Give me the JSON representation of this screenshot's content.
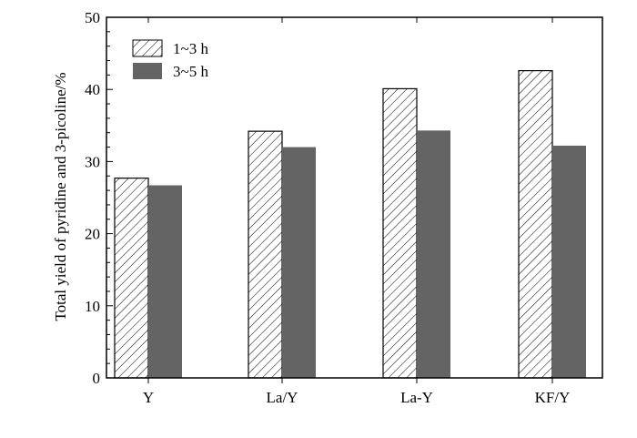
{
  "chart_data": {
    "type": "bar",
    "title": "",
    "xlabel": "",
    "ylabel": "Total yield of pyridine and 3-picoline/%",
    "categories": [
      "Y",
      "La/Y",
      "La-Y",
      "KF/Y"
    ],
    "series": [
      {
        "name": "1~3 h",
        "values": [
          27.7,
          34.2,
          40.1,
          42.6
        ],
        "pattern": "hatch"
      },
      {
        "name": "3~5 h",
        "values": [
          26.7,
          32.0,
          34.3,
          32.2
        ],
        "color": "#646464"
      }
    ],
    "ylim": [
      0,
      50
    ],
    "yticks": [
      "0",
      "10",
      "20",
      "30",
      "40",
      "50"
    ],
    "grid": false,
    "legend_position": "top-left"
  }
}
